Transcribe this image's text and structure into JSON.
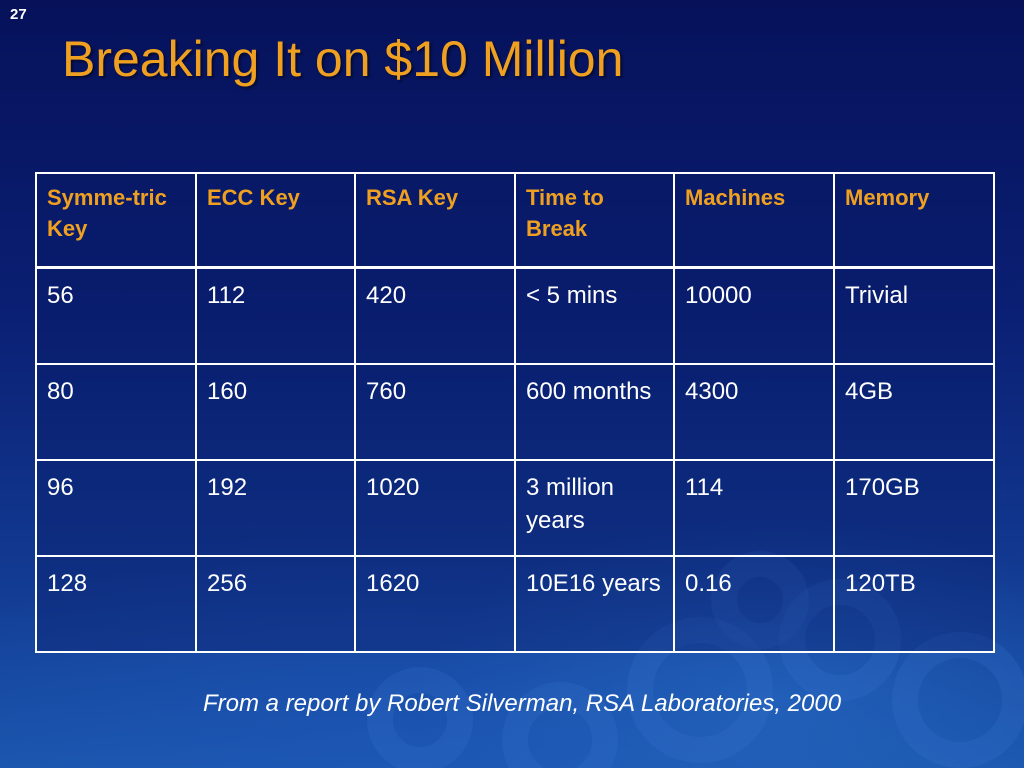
{
  "slide": {
    "number": "27",
    "title": "Breaking It on $10 Million",
    "caption": "From a report by Robert Silverman, RSA Laboratories, 2000"
  },
  "colors": {
    "title": "#f0a020",
    "header_text": "#f0a020",
    "cell_text": "#ffffff",
    "border": "#ffffff",
    "background_top": "#06115a",
    "background_bottom": "#1b56ad"
  },
  "table": {
    "headers": [
      "Symme-tric Key",
      "ECC Key",
      "RSA Key",
      "Time to Break",
      "Machines",
      "Memory"
    ],
    "rows": [
      [
        "56",
        "112",
        "420",
        "< 5 mins",
        "10000",
        "Trivial"
      ],
      [
        "80",
        "160",
        "760",
        "600 months",
        "4300",
        "4GB"
      ],
      [
        "96",
        "192",
        "1020",
        "3 million years",
        "114",
        "170GB"
      ],
      [
        "128",
        "256",
        "1620",
        "10E16 years",
        "0.16",
        "120TB"
      ]
    ]
  }
}
